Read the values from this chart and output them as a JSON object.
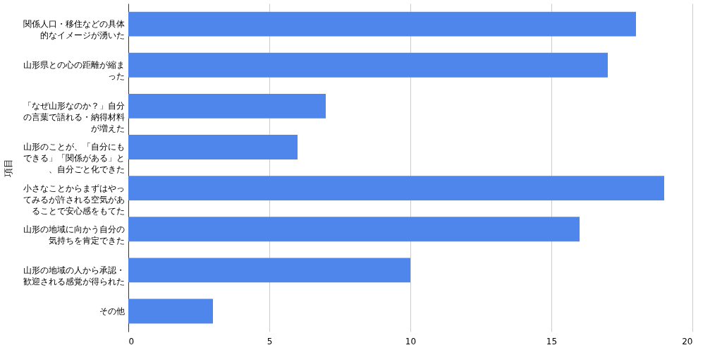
{
  "chart_data": {
    "type": "bar",
    "orientation": "horizontal",
    "ylabel": "項目",
    "categories": [
      "関係人口・移住などの具体的なイメージが湧いた",
      "山形県との心の距離が縮まった",
      "「なぜ山形なのか？」自分の言葉で語れる・納得材料が増えた",
      "山形のことが、「自分にもできる」「関係がある」と、自分ごと化できた",
      "小さなことからまずはやってみるが許される空気があることで安心感をもてた",
      "山形の地域に向かう自分の気持ちを肯定できた",
      "山形の地域の人から承認・歓迎される感覚が得られた",
      "その他"
    ],
    "values": [
      18,
      17,
      7,
      6,
      19,
      16,
      10,
      3
    ],
    "color": "#4f86ec",
    "xlim": [
      0,
      20
    ],
    "xticks": [
      0,
      5,
      10,
      15,
      20
    ],
    "grid": "x"
  }
}
